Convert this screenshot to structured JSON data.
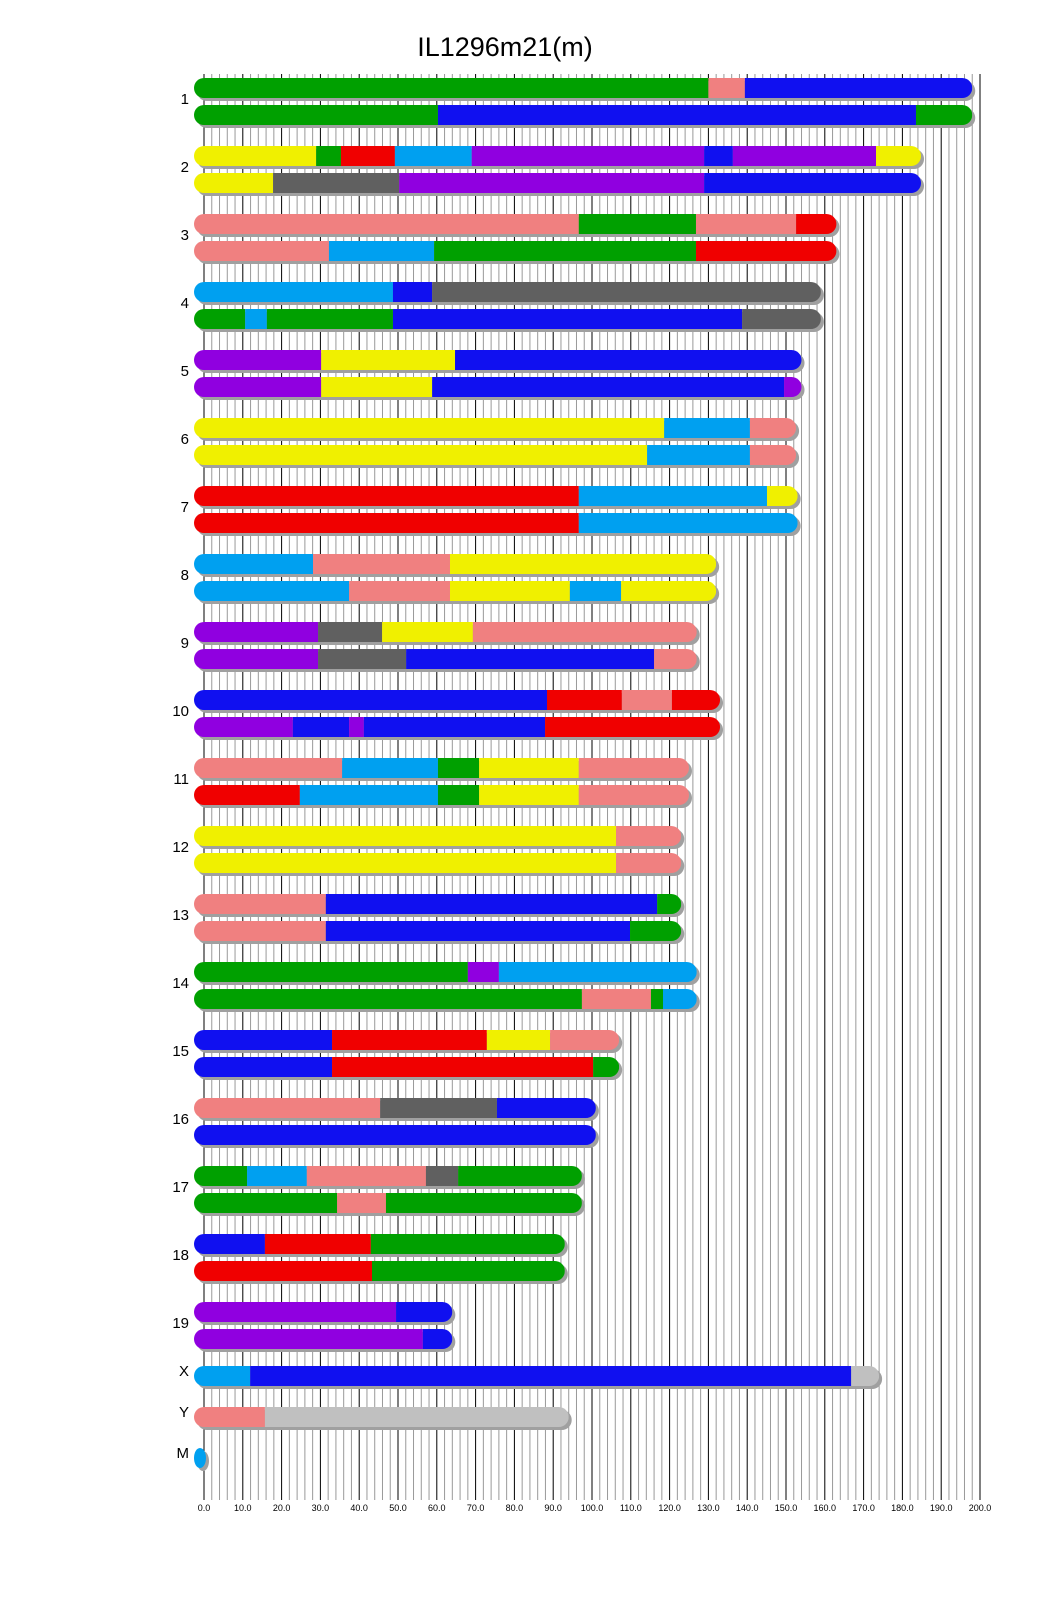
{
  "chart_data": {
    "type": "bar",
    "title": "IL1296m21(m)",
    "xlabel": "",
    "ylabel": "",
    "xlim": [
      0,
      200
    ],
    "x_ticks": [
      "0.0",
      "10.0",
      "20.0",
      "30.0",
      "40.0",
      "50.0",
      "60.0",
      "70.0",
      "80.0",
      "90.0",
      "100.0",
      "110.0",
      "120.0",
      "130.0",
      "140.0",
      "150.0",
      "160.0",
      "170.0",
      "180.0",
      "190.0",
      "200.0"
    ],
    "grid": true,
    "colors": {
      "green": "#00a000",
      "salmon": "#f08080",
      "blue": "#1010f0",
      "yellow": "#f0f000",
      "red": "#f00000",
      "cyan": "#00a0f0",
      "purple": "#9000e0",
      "gray": "#606060",
      "lightgray": "#c0c0c0"
    },
    "chromosomes": [
      {
        "name": "1",
        "haplotypes": [
          [
            [
              "green",
              0,
              130
            ],
            [
              "salmon",
              130,
              139.4
            ],
            [
              "blue",
              139.4,
              198
            ]
          ],
          [
            [
              "green",
              0,
              60.3
            ],
            [
              "blue",
              60.3,
              183.5
            ],
            [
              "green",
              183.5,
              198
            ]
          ]
        ]
      },
      {
        "name": "2",
        "haplotypes": [
          [
            [
              "yellow",
              0,
              28.9
            ],
            [
              "green",
              28.9,
              35.3
            ],
            [
              "red",
              35.3,
              49.2
            ],
            [
              "cyan",
              49.2,
              69
            ],
            [
              "purple",
              69,
              128.9
            ],
            [
              "blue",
              128.9,
              136.3
            ],
            [
              "purple",
              136.3,
              173.2
            ],
            [
              "yellow",
              173.2,
              184.8
            ]
          ],
          [
            [
              "yellow",
              0,
              17.8
            ],
            [
              "gray",
              17.8,
              50.3
            ],
            [
              "purple",
              50.3,
              128.9
            ],
            [
              "blue",
              128.9,
              184.8
            ]
          ]
        ]
      },
      {
        "name": "3",
        "haplotypes": [
          [
            [
              "salmon",
              0,
              96.6
            ],
            [
              "green",
              96.6,
              126.8
            ],
            [
              "salmon",
              126.8,
              152.6
            ],
            [
              "red",
              152.6,
              163
            ]
          ],
          [
            [
              "salmon",
              0,
              32.2
            ],
            [
              "cyan",
              32.2,
              59.3
            ],
            [
              "green",
              59.3,
              126.8
            ],
            [
              "red",
              126.8,
              163
            ]
          ]
        ]
      },
      {
        "name": "4",
        "haplotypes": [
          [
            [
              "cyan",
              0,
              48.7
            ],
            [
              "blue",
              48.7,
              58.8
            ],
            [
              "gray",
              58.8,
              159
            ]
          ],
          [
            [
              "green",
              0,
              10.6
            ],
            [
              "cyan",
              10.6,
              16.2
            ],
            [
              "green",
              16.2,
              48.7
            ],
            [
              "blue",
              48.7,
              138.7
            ],
            [
              "gray",
              138.7,
              159
            ]
          ]
        ]
      },
      {
        "name": "5",
        "haplotypes": [
          [
            [
              "purple",
              0,
              30.2
            ],
            [
              "yellow",
              30.2,
              64.7
            ],
            [
              "blue",
              64.7,
              154
            ]
          ],
          [
            [
              "purple",
              0,
              30.2
            ],
            [
              "yellow",
              30.2,
              58.8
            ],
            [
              "blue",
              58.8,
              149.5
            ],
            [
              "purple",
              149.5,
              154
            ]
          ]
        ]
      },
      {
        "name": "6",
        "haplotypes": [
          [
            [
              "yellow",
              0,
              118.6
            ],
            [
              "cyan",
              118.6,
              140.7
            ],
            [
              "salmon",
              140.7,
              152.6
            ]
          ],
          [
            [
              "yellow",
              0,
              114.2
            ],
            [
              "cyan",
              114.2,
              140.7
            ],
            [
              "salmon",
              140.7,
              152.6
            ]
          ]
        ]
      },
      {
        "name": "7",
        "haplotypes": [
          [
            [
              "red",
              0,
              96.6
            ],
            [
              "cyan",
              96.6,
              145.1
            ],
            [
              "yellow",
              145.1,
              153
            ]
          ],
          [
            [
              "red",
              0,
              96.6
            ],
            [
              "cyan",
              96.6,
              153
            ]
          ]
        ]
      },
      {
        "name": "8",
        "haplotypes": [
          [
            [
              "cyan",
              0,
              28.1
            ],
            [
              "salmon",
              28.1,
              63.4
            ],
            [
              "yellow",
              63.4,
              132
            ]
          ],
          [
            [
              "cyan",
              0,
              37.4
            ],
            [
              "salmon",
              37.4,
              63.4
            ],
            [
              "yellow",
              63.4,
              94.3
            ],
            [
              "cyan",
              94.3,
              107.5
            ],
            [
              "yellow",
              107.5,
              132
            ]
          ]
        ]
      },
      {
        "name": "9",
        "haplotypes": [
          [
            [
              "purple",
              0,
              29.4
            ],
            [
              "gray",
              29.4,
              45.9
            ],
            [
              "yellow",
              45.9,
              69.3
            ],
            [
              "salmon",
              69.3,
              127
            ]
          ],
          [
            [
              "purple",
              0,
              29.4
            ],
            [
              "gray",
              29.4,
              52.1
            ],
            [
              "blue",
              52.1,
              116
            ],
            [
              "salmon",
              116,
              127
            ]
          ]
        ]
      },
      {
        "name": "10",
        "haplotypes": [
          [
            [
              "blue",
              0,
              88.4
            ],
            [
              "red",
              88.4,
              107.7
            ],
            [
              "salmon",
              107.7,
              120.6
            ],
            [
              "red",
              120.6,
              133
            ]
          ],
          [
            [
              "purple",
              0,
              22.9
            ],
            [
              "blue",
              22.9,
              37.4
            ],
            [
              "purple",
              37.4,
              41.2
            ],
            [
              "blue",
              41.2,
              87.9
            ],
            [
              "red",
              87.9,
              133
            ]
          ]
        ]
      },
      {
        "name": "11",
        "haplotypes": [
          [
            [
              "salmon",
              0,
              35.6
            ],
            [
              "cyan",
              35.6,
              60.3
            ],
            [
              "green",
              60.3,
              70.9
            ],
            [
              "yellow",
              70.9,
              96.6
            ],
            [
              "salmon",
              96.6,
              125
            ]
          ],
          [
            [
              "red",
              0,
              24.7
            ],
            [
              "cyan",
              24.7,
              60.3
            ],
            [
              "green",
              60.3,
              70.9
            ],
            [
              "yellow",
              70.9,
              96.6
            ],
            [
              "salmon",
              96.6,
              125
            ]
          ]
        ]
      },
      {
        "name": "12",
        "haplotypes": [
          [
            [
              "yellow",
              0,
              106.2
            ],
            [
              "salmon",
              106.2,
              123
            ]
          ],
          [
            [
              "yellow",
              0,
              106.2
            ],
            [
              "salmon",
              106.2,
              123
            ]
          ]
        ]
      },
      {
        "name": "13",
        "haplotypes": [
          [
            [
              "salmon",
              0,
              31.4
            ],
            [
              "blue",
              31.4,
              116.8
            ],
            [
              "green",
              116.8,
              123
            ]
          ],
          [
            [
              "salmon",
              0,
              31.4
            ],
            [
              "blue",
              31.4,
              109.8
            ],
            [
              "green",
              109.8,
              123
            ]
          ]
        ]
      },
      {
        "name": "14",
        "haplotypes": [
          [
            [
              "green",
              0,
              68
            ],
            [
              "purple",
              68,
              76
            ],
            [
              "cyan",
              76,
              127
            ]
          ],
          [
            [
              "green",
              0,
              97.4
            ],
            [
              "salmon",
              97.4,
              115.2
            ],
            [
              "green",
              115.2,
              118.3
            ],
            [
              "cyan",
              118.3,
              127
            ]
          ]
        ]
      },
      {
        "name": "15",
        "haplotypes": [
          [
            [
              "blue",
              0,
              33
            ],
            [
              "red",
              33,
              72.9
            ],
            [
              "yellow",
              72.9,
              89.2
            ],
            [
              "salmon",
              89.2,
              107
            ]
          ],
          [
            [
              "blue",
              0,
              33
            ],
            [
              "red",
              33,
              100.3
            ],
            [
              "green",
              100.3,
              107
            ]
          ]
        ]
      },
      {
        "name": "16",
        "haplotypes": [
          [
            [
              "salmon",
              0,
              45.4
            ],
            [
              "gray",
              45.4,
              75.5
            ],
            [
              "blue",
              75.5,
              101
            ]
          ],
          [
            [
              "blue",
              0,
              101
            ]
          ]
        ]
      },
      {
        "name": "17",
        "haplotypes": [
          [
            [
              "green",
              0,
              11.1
            ],
            [
              "cyan",
              11.1,
              26.5
            ],
            [
              "salmon",
              26.5,
              57.2
            ],
            [
              "gray",
              57.2,
              65.5
            ],
            [
              "green",
              65.5,
              97.4
            ]
          ],
          [
            [
              "green",
              0,
              34.3
            ],
            [
              "salmon",
              34.3,
              46.9
            ],
            [
              "green",
              46.9,
              97.4
            ]
          ]
        ]
      },
      {
        "name": "18",
        "haplotypes": [
          [
            [
              "blue",
              0,
              15.7
            ],
            [
              "red",
              15.7,
              43
            ],
            [
              "green",
              43,
              93
            ]
          ],
          [
            [
              "red",
              0,
              43.3
            ],
            [
              "green",
              43.3,
              93
            ]
          ]
        ]
      },
      {
        "name": "19",
        "haplotypes": [
          [
            [
              "purple",
              0,
              49.5
            ],
            [
              "blue",
              49.5,
              64
            ]
          ],
          [
            [
              "purple",
              0,
              56.4
            ],
            [
              "blue",
              56.4,
              64
            ]
          ]
        ]
      },
      {
        "name": "X",
        "haplotypes": [
          [
            [
              "cyan",
              0,
              11.9
            ],
            [
              "blue",
              11.9,
              166.8
            ],
            [
              "lightgray",
              166.8,
              174
            ]
          ]
        ]
      },
      {
        "name": "Y",
        "haplotypes": [
          [
            [
              "salmon",
              0,
              15.7
            ],
            [
              "lightgray",
              15.7,
              94
            ]
          ]
        ]
      },
      {
        "name": "M",
        "haplotypes": [
          [
            [
              "cyan",
              0,
              0.02
            ]
          ]
        ]
      }
    ]
  }
}
